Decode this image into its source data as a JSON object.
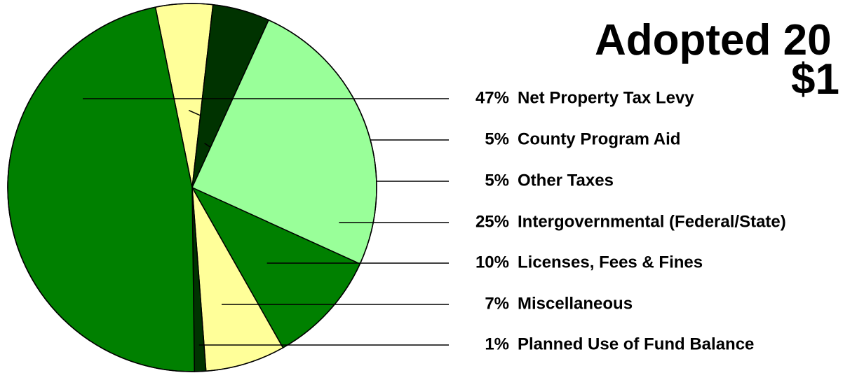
{
  "chart_data": {
    "type": "pie",
    "title": "Adopted 20",
    "subtitle": "$1",
    "categories": [
      "County Program Aid",
      "Other Taxes",
      "Intergovernmental (Federal/State)",
      "Licenses, Fees & Fines",
      "Miscellaneous",
      "Planned Use of Fund Balance",
      "Net Property Tax Levy"
    ],
    "values": [
      5,
      5,
      25,
      10,
      7,
      1,
      47
    ],
    "value_labels": [
      "5%",
      "5%",
      "25%",
      "10%",
      "7%",
      "1%",
      "47%"
    ],
    "colors": [
      "#ffff99",
      "#003300",
      "#99ff99",
      "#008000",
      "#ffff99",
      "#003300",
      "#008000"
    ]
  }
}
